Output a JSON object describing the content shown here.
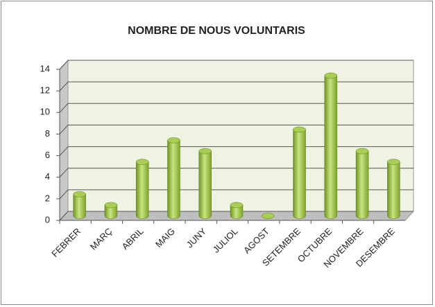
{
  "chart_data": {
    "type": "bar",
    "title": "NOMBRE DE  NOUS VOLUNTARIS",
    "categories": [
      "FEBRER",
      "MARÇ",
      "ABRIL",
      "MAIG",
      "JUNY",
      "JULIOL",
      "AGOST",
      "SETEMBRE",
      "OCTUBRE",
      "NOVEMBRE",
      "DESEMBRE"
    ],
    "values": [
      2,
      1,
      5,
      7,
      6,
      1,
      0,
      8,
      13,
      6,
      5
    ],
    "color": "#9bc23f",
    "ylim": [
      0,
      14
    ],
    "yticks": [
      0,
      2,
      4,
      6,
      8,
      10,
      12,
      14
    ],
    "grid": true
  }
}
